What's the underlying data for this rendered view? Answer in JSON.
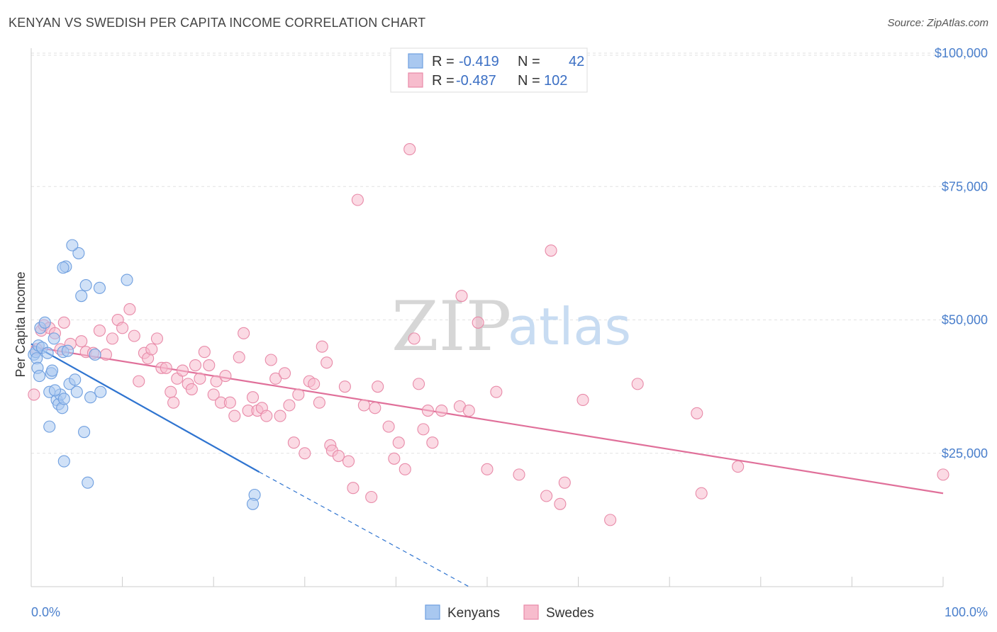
{
  "title": "KENYAN VS SWEDISH PER CAPITA INCOME CORRELATION CHART",
  "source": "Source: ZipAtlas.com",
  "watermark": {
    "zip": "ZIP",
    "atlas": "atlas"
  },
  "legend_top": [
    {
      "r_label": "R =",
      "r_value": "-0.419",
      "n_label": "N =",
      "n_value": "42",
      "color": "#a9c8f0",
      "stroke": "#6f9fdf"
    },
    {
      "r_label": "R =",
      "r_value": "-0.487",
      "n_label": "N =",
      "n_value": "102",
      "color": "#f7bccd",
      "stroke": "#e88aa8"
    }
  ],
  "legend_bottom": [
    {
      "label": "Kenyans",
      "color": "#a9c8f0",
      "stroke": "#6f9fdf"
    },
    {
      "label": "Swedes",
      "color": "#f7bccd",
      "stroke": "#e88aa8"
    }
  ],
  "chart_data": {
    "type": "scatter",
    "title": "KENYAN VS SWEDISH PER CAPITA INCOME CORRELATION CHART",
    "xlabel": "",
    "ylabel": "Per Capita Income",
    "xlim": [
      0,
      100
    ],
    "ylim": [
      0,
      102000
    ],
    "x_tick_labels": [
      "0.0%",
      "100.0%"
    ],
    "y_ticks": [
      25000,
      50000,
      75000,
      100000
    ],
    "y_tick_labels": [
      "$25,000",
      "$50,000",
      "$75,000",
      "$100,000"
    ],
    "grid": true,
    "legend_position": "top-center",
    "series": [
      {
        "name": "Kenyans",
        "color": "#6f9fdf",
        "fill": "#a9c8f0",
        "trend": {
          "x": [
            0,
            25
          ],
          "y": [
            45500,
            21500
          ],
          "dashed_to": [
            48,
            0
          ]
        },
        "points": [
          [
            0.3,
            43500
          ],
          [
            0.5,
            44000
          ],
          [
            0.6,
            42800
          ],
          [
            0.8,
            45200
          ],
          [
            1.0,
            48500
          ],
          [
            1.2,
            44800
          ],
          [
            1.5,
            49500
          ],
          [
            0.7,
            41000
          ],
          [
            0.9,
            39500
          ],
          [
            1.8,
            43800
          ],
          [
            2.0,
            36500
          ],
          [
            2.2,
            40000
          ],
          [
            2.5,
            46500
          ],
          [
            2.8,
            35000
          ],
          [
            3.0,
            34200
          ],
          [
            2.0,
            30000
          ],
          [
            3.5,
            44000
          ],
          [
            4.0,
            44200
          ],
          [
            4.2,
            38000
          ],
          [
            3.2,
            36000
          ],
          [
            4.8,
            38800
          ],
          [
            5.0,
            36500
          ],
          [
            2.3,
            40500
          ],
          [
            3.8,
            60000
          ],
          [
            3.4,
            33500
          ],
          [
            5.2,
            62500
          ],
          [
            3.5,
            59800
          ],
          [
            4.5,
            64000
          ],
          [
            6.0,
            56500
          ],
          [
            5.5,
            54500
          ],
          [
            7.5,
            56000
          ],
          [
            10.5,
            57500
          ],
          [
            7.0,
            43500
          ],
          [
            6.5,
            35500
          ],
          [
            7.6,
            36500
          ],
          [
            3.6,
            35200
          ],
          [
            2.6,
            36800
          ],
          [
            3.6,
            23500
          ],
          [
            5.8,
            29000
          ],
          [
            6.2,
            19500
          ],
          [
            24.5,
            17200
          ],
          [
            24.3,
            15500
          ]
        ]
      },
      {
        "name": "Swedes",
        "color": "#e88aa8",
        "fill": "#f7bccd",
        "trend": {
          "x": [
            0,
            100
          ],
          "y": [
            45000,
            17500
          ]
        },
        "points": [
          [
            0.3,
            36000
          ],
          [
            0.6,
            44500
          ],
          [
            1.1,
            48000
          ],
          [
            1.4,
            49000
          ],
          [
            2.0,
            48500
          ],
          [
            2.6,
            47500
          ],
          [
            3.2,
            44500
          ],
          [
            3.6,
            49500
          ],
          [
            4.3,
            45500
          ],
          [
            5.5,
            46000
          ],
          [
            6.0,
            44000
          ],
          [
            6.8,
            43800
          ],
          [
            7.5,
            48000
          ],
          [
            8.2,
            43500
          ],
          [
            8.9,
            46500
          ],
          [
            9.5,
            50000
          ],
          [
            10.0,
            48500
          ],
          [
            10.8,
            52000
          ],
          [
            11.3,
            47000
          ],
          [
            11.8,
            38500
          ],
          [
            12.4,
            43800
          ],
          [
            12.8,
            42800
          ],
          [
            13.2,
            44500
          ],
          [
            13.8,
            46500
          ],
          [
            14.3,
            41000
          ],
          [
            14.8,
            41000
          ],
          [
            15.3,
            36500
          ],
          [
            15.6,
            34500
          ],
          [
            16.0,
            39000
          ],
          [
            16.6,
            40500
          ],
          [
            17.2,
            38000
          ],
          [
            17.6,
            37000
          ],
          [
            18.0,
            41500
          ],
          [
            18.5,
            39000
          ],
          [
            19.0,
            44000
          ],
          [
            19.5,
            41500
          ],
          [
            20.0,
            36000
          ],
          [
            20.3,
            38500
          ],
          [
            20.8,
            34500
          ],
          [
            21.3,
            39500
          ],
          [
            21.8,
            34500
          ],
          [
            22.3,
            32000
          ],
          [
            22.8,
            43000
          ],
          [
            23.3,
            47500
          ],
          [
            23.8,
            33000
          ],
          [
            24.3,
            35500
          ],
          [
            24.8,
            33000
          ],
          [
            25.3,
            33500
          ],
          [
            25.8,
            32000
          ],
          [
            26.3,
            42500
          ],
          [
            26.8,
            39000
          ],
          [
            27.3,
            32000
          ],
          [
            27.8,
            40000
          ],
          [
            28.3,
            34000
          ],
          [
            28.8,
            27000
          ],
          [
            29.3,
            36000
          ],
          [
            30.0,
            25000
          ],
          [
            30.5,
            38500
          ],
          [
            31.0,
            38000
          ],
          [
            31.6,
            34500
          ],
          [
            31.9,
            45000
          ],
          [
            32.4,
            42000
          ],
          [
            32.8,
            26500
          ],
          [
            33.0,
            25500
          ],
          [
            33.7,
            24500
          ],
          [
            34.4,
            37500
          ],
          [
            34.8,
            23500
          ],
          [
            35.3,
            18500
          ],
          [
            35.8,
            72500
          ],
          [
            36.5,
            34000
          ],
          [
            37.3,
            16800
          ],
          [
            37.7,
            33500
          ],
          [
            38.0,
            37500
          ],
          [
            39.2,
            30000
          ],
          [
            39.8,
            24000
          ],
          [
            40.3,
            27000
          ],
          [
            41.0,
            22000
          ],
          [
            41.5,
            82000
          ],
          [
            42.0,
            46500
          ],
          [
            42.5,
            38000
          ],
          [
            43.0,
            29500
          ],
          [
            43.5,
            33000
          ],
          [
            44.0,
            27000
          ],
          [
            45.0,
            33000
          ],
          [
            47.0,
            33800
          ],
          [
            47.2,
            54500
          ],
          [
            48.0,
            33000
          ],
          [
            49.0,
            49500
          ],
          [
            50.0,
            22000
          ],
          [
            51.0,
            36500
          ],
          [
            53.5,
            21000
          ],
          [
            56.5,
            17000
          ],
          [
            57.0,
            63000
          ],
          [
            58.0,
            15500
          ],
          [
            58.5,
            19500
          ],
          [
            60.5,
            35000
          ],
          [
            63.5,
            12500
          ],
          [
            66.5,
            38000
          ],
          [
            73.0,
            32500
          ],
          [
            73.5,
            17500
          ],
          [
            77.5,
            22500
          ],
          [
            100.0,
            21000
          ]
        ]
      }
    ]
  }
}
